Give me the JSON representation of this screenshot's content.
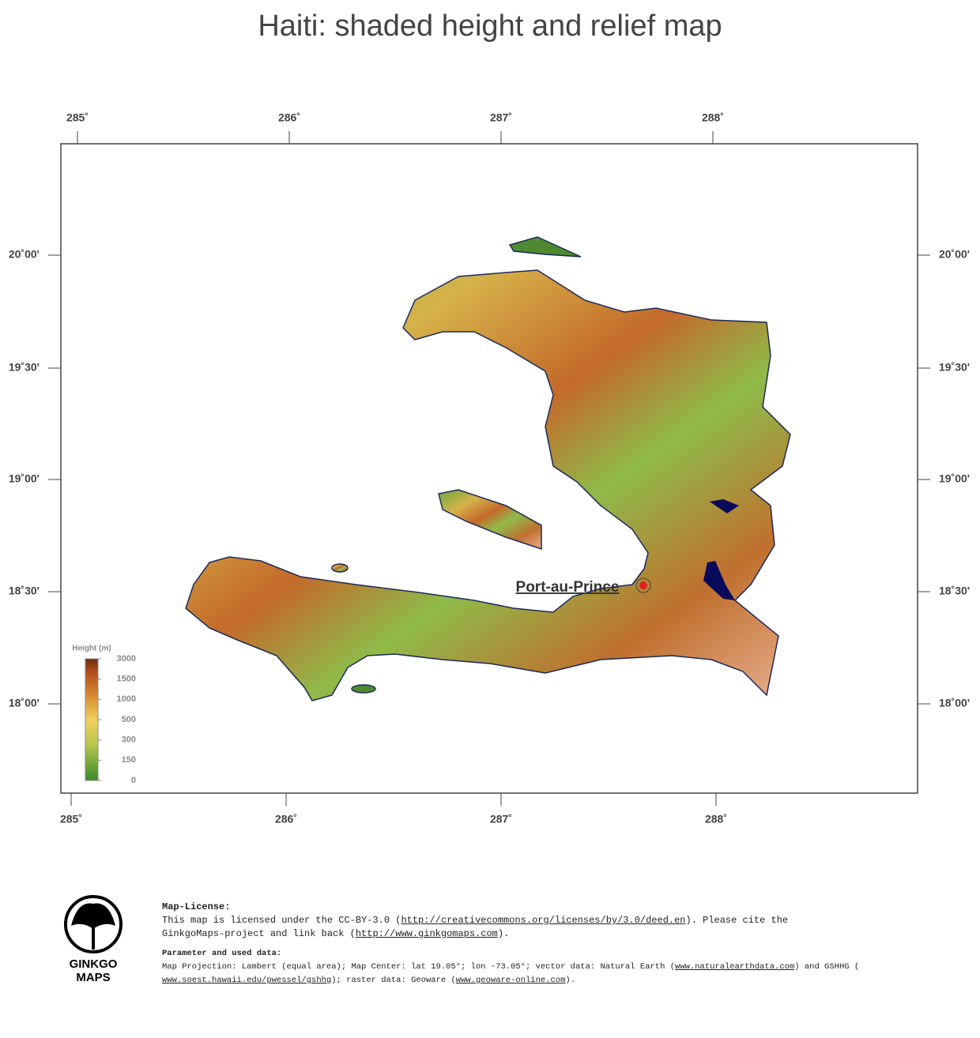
{
  "title": "Haiti: shaded height and relief map",
  "map": {
    "lon_labels": [
      "285˚",
      "286˚",
      "287˚",
      "288˚"
    ],
    "lat_labels": [
      "20˚00'",
      "19˚30'",
      "19˚00'",
      "18˚30'",
      "18˚00'"
    ],
    "city": "Port-au-Prince",
    "legend": {
      "title": "Height  (m)",
      "levels": [
        3000,
        1500,
        1000,
        500,
        300,
        150,
        0
      ]
    }
  },
  "footer": {
    "logo": [
      "GINKGO",
      "MAPS"
    ],
    "license_heading": "Map-License:",
    "license_line1": [
      "This map is licensed under the CC-BY-3.0 (",
      "http://creativecommons.org/licenses/by/3.0/deed.en",
      ").  Please cite the"
    ],
    "license_line2": [
      "GinkgoMaps-project and link back (",
      "http://www.ginkgomaps.com",
      ")."
    ],
    "params_heading": "Parameter and used data:",
    "params_line1": [
      "Map Projection: Lambert (equal area); Map Center: lat 19.05°; lon -73.05°; vector data: Natural Earth (",
      "www.naturalearthdata.com",
      ") and GSHHG ("
    ],
    "params_line2": [
      "",
      "www.soest.hawaii.edu/pwessel/gshhg",
      "); raster data: Geoware (",
      "www.geoware-online.com",
      ")."
    ]
  }
}
